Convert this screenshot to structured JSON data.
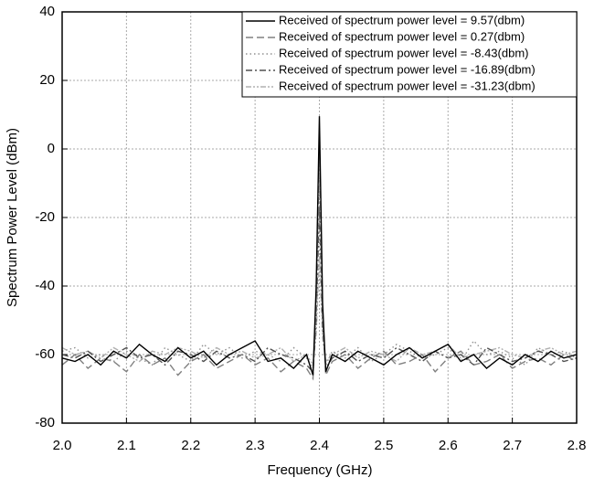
{
  "chart_data": {
    "type": "line",
    "x_label": "Frequency (GHz)",
    "y_label": "Spectrum Power Level (dBm)",
    "xlim": [
      2.0,
      2.8
    ],
    "ylim": [
      -80,
      40
    ],
    "xticks": [
      {
        "value": 2.0,
        "label": "2.0"
      },
      2.1,
      2.2,
      2.3,
      2.4,
      2.5,
      2.6,
      2.7,
      2.8
    ],
    "yticks": [
      -80,
      -60,
      -40,
      -20,
      0,
      20,
      40
    ],
    "grid": true,
    "legend": "upper right",
    "x": [
      2.0,
      2.02,
      2.04,
      2.06,
      2.08,
      2.1,
      2.12,
      2.14,
      2.16,
      2.18,
      2.2,
      2.22,
      2.24,
      2.26,
      2.28,
      2.3,
      2.32,
      2.34,
      2.36,
      2.38,
      2.39,
      2.395,
      2.4,
      2.405,
      2.41,
      2.42,
      2.44,
      2.46,
      2.48,
      2.5,
      2.52,
      2.54,
      2.56,
      2.58,
      2.6,
      2.62,
      2.64,
      2.66,
      2.68,
      2.7,
      2.72,
      2.74,
      2.76,
      2.78,
      2.8
    ],
    "series": [
      {
        "name": "Received of spectrum power level = 9.57(dbm)",
        "color": "#000000",
        "dash": "solid",
        "values": [
          -61,
          -62,
          -60,
          -63,
          -59,
          -61,
          -57,
          -60,
          -62,
          -58,
          -61,
          -59,
          -63,
          -60,
          -58,
          -56,
          -62,
          -61,
          -64,
          -60,
          -66,
          -40,
          9.57,
          -45,
          -65,
          -60,
          -62,
          -59,
          -61,
          -63,
          -60,
          -58,
          -61,
          -59,
          -57,
          -62,
          -60,
          -64,
          -61,
          -63,
          -60,
          -62,
          -59,
          -61,
          -60
        ]
      },
      {
        "name": "Received of spectrum power level = 0.27(dbm)",
        "color": "#808080",
        "dash": "dashed",
        "values": [
          -63,
          -60,
          -64,
          -61,
          -62,
          -65,
          -60,
          -63,
          -61,
          -66,
          -62,
          -60,
          -64,
          -62,
          -60,
          -63,
          -61,
          -65,
          -62,
          -64,
          -67,
          -45,
          0.27,
          -48,
          -66,
          -62,
          -60,
          -64,
          -61,
          -59,
          -63,
          -62,
          -60,
          -65,
          -61,
          -59,
          -63,
          -62,
          -60,
          -64,
          -62,
          -61,
          -63,
          -60,
          -62
        ]
      },
      {
        "name": "Received of spectrum power level = -8.43(dbm)",
        "color": "#909090",
        "dash": "dotted",
        "values": [
          -59,
          -58,
          -61,
          -60,
          -62,
          -59,
          -61,
          -63,
          -58,
          -60,
          -62,
          -57,
          -60,
          -58,
          -61,
          -59,
          -60,
          -62,
          -58,
          -61,
          -64,
          -48,
          -8.43,
          -50,
          -63,
          -59,
          -61,
          -58,
          -62,
          -60,
          -57,
          -59,
          -61,
          -60,
          -58,
          -62,
          -56,
          -60,
          -59,
          -61,
          -63,
          -58,
          -60,
          -59,
          -61
        ]
      },
      {
        "name": "Received of spectrum power level = -16.89(dbm)",
        "color": "#505050",
        "dash": "dashdot",
        "values": [
          -60,
          -61,
          -59,
          -62,
          -60,
          -58,
          -61,
          -60,
          -63,
          -59,
          -60,
          -62,
          -59,
          -61,
          -60,
          -62,
          -58,
          -60,
          -61,
          -63,
          -65,
          -50,
          -16.89,
          -52,
          -64,
          -61,
          -59,
          -62,
          -60,
          -61,
          -58,
          -60,
          -62,
          -59,
          -61,
          -60,
          -63,
          -58,
          -60,
          -62,
          -61,
          -59,
          -60,
          -62,
          -61
        ]
      },
      {
        "name": "Received of spectrum power level = -31.23(dbm)",
        "color": "#b0b0b0",
        "dash": "dashdotdot",
        "values": [
          -58,
          -60,
          -59,
          -61,
          -58,
          -60,
          -62,
          -59,
          -60,
          -58,
          -59,
          -61,
          -58,
          -60,
          -59,
          -61,
          -60,
          -58,
          -62,
          -60,
          -63,
          -54,
          -31.23,
          -55,
          -62,
          -60,
          -58,
          -61,
          -59,
          -60,
          -62,
          -58,
          -60,
          -59,
          -57,
          -61,
          -60,
          -59,
          -58,
          -60,
          -61,
          -59,
          -58,
          -60,
          -59
        ]
      }
    ]
  }
}
